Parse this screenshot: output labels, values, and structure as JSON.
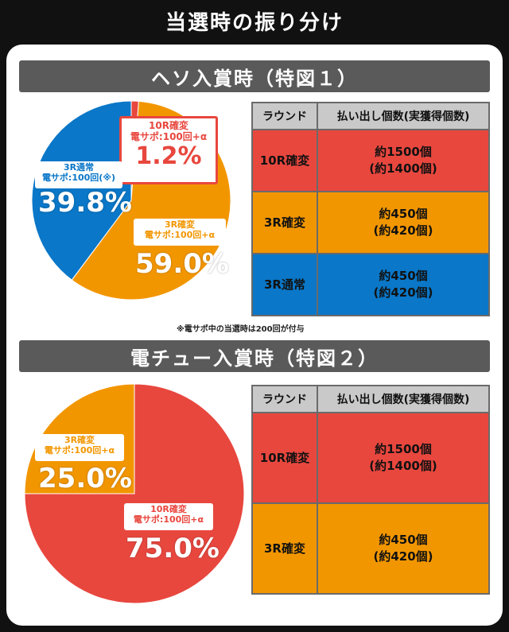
{
  "title": "当選時の振り分け",
  "colors": {
    "red": "#e8473e",
    "orange": "#f29600",
    "blue": "#0a77c8",
    "header": "#5a5a5a"
  },
  "section1": {
    "header": "ヘソ入賞時（特図１）",
    "callouts": {
      "kakuhen10": {
        "label": "10R確変\n電サポ:100回+α",
        "pct": "1.2%"
      },
      "kakuhen3": {
        "label": "3R確変\n電サポ:100回+α",
        "pct": "59.0%"
      },
      "tsujo3": {
        "label": "3R通常\n電サポ:100回(※)",
        "pct": "39.8%"
      }
    },
    "note": "※電サポ中の当選時は200回が付与",
    "table": {
      "headers": [
        "ラウンド",
        "払い出し個数(実獲得個数)"
      ],
      "rows": [
        {
          "round": "10R確変",
          "payout": "約1500個\n(約1400個)",
          "color": "#e8473e"
        },
        {
          "round": "3R確変",
          "payout": "約450個\n(約420個)",
          "color": "#f29600"
        },
        {
          "round": "3R通常",
          "payout": "約450個\n(約420個)",
          "color": "#0a77c8"
        }
      ]
    }
  },
  "section2": {
    "header": "電チュー入賞時（特図２）",
    "callouts": {
      "kakuhen3": {
        "label": "3R確変\n電サポ:100回+α",
        "pct": "25.0%"
      },
      "kakuhen10": {
        "label": "10R確変\n電サポ:100回+α",
        "pct": "75.0%"
      }
    },
    "table": {
      "headers": [
        "ラウンド",
        "払い出し個数(実獲得個数)"
      ],
      "rows": [
        {
          "round": "10R確変",
          "payout": "約1500個\n(約1400個)",
          "color": "#e8473e"
        },
        {
          "round": "3R確変",
          "payout": "約450個\n(約420個)",
          "color": "#f29600"
        }
      ]
    }
  },
  "chart_data": [
    {
      "type": "pie",
      "title": "ヘソ入賞時（特図１）",
      "categories": [
        "10R確変",
        "3R確変",
        "3R通常"
      ],
      "values": [
        1.2,
        59.0,
        39.8
      ],
      "colors": [
        "#e8473e",
        "#f29600",
        "#0a77c8"
      ]
    },
    {
      "type": "pie",
      "title": "電チュー入賞時（特図２）",
      "categories": [
        "10R確変",
        "3R確変"
      ],
      "values": [
        75.0,
        25.0
      ],
      "colors": [
        "#e8473e",
        "#f29600"
      ]
    }
  ]
}
